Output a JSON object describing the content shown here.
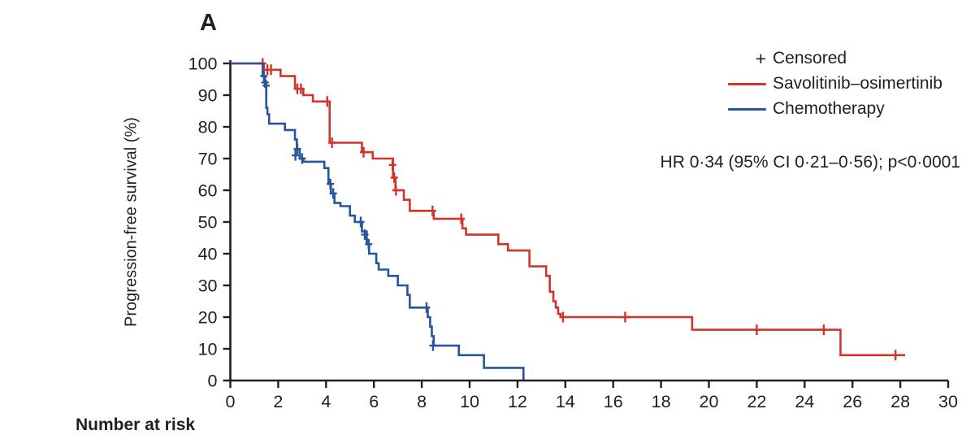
{
  "figure": {
    "panel_label": "A",
    "number_at_risk_label": "Number at risk"
  },
  "legend": {
    "censored_symbol": "+",
    "censored_label": "Censored"
  },
  "colors": {
    "axis": "#231f20",
    "text": "#231f20",
    "savolitinib": "#d0342c",
    "chemotherapy": "#28549c"
  },
  "chart_data": {
    "type": "line",
    "subtype": "kaplan-meier-step",
    "title": "",
    "xlabel": "",
    "ylabel": "Progression-free survival (%)",
    "annotation": "HR 0·34 (95% CI 0·21–0·56); p<0·0001",
    "xlim": [
      0,
      30
    ],
    "ylim": [
      0,
      100
    ],
    "x_ticks": [
      0,
      2,
      4,
      6,
      8,
      10,
      12,
      14,
      16,
      18,
      20,
      22,
      24,
      26,
      28,
      30
    ],
    "y_ticks": [
      0,
      10,
      20,
      30,
      40,
      50,
      60,
      70,
      80,
      90,
      100
    ],
    "grid": false,
    "legend_position": "top-right",
    "series": [
      {
        "name": "Savolitinib–osimertinib",
        "color": "#d0342c",
        "steps": [
          [
            0,
            100
          ],
          [
            1.4,
            98
          ],
          [
            2.1,
            96
          ],
          [
            2.7,
            92
          ],
          [
            3.05,
            90
          ],
          [
            3.45,
            88
          ],
          [
            4.15,
            75
          ],
          [
            5.5,
            72
          ],
          [
            5.95,
            70
          ],
          [
            6.8,
            64
          ],
          [
            6.9,
            60
          ],
          [
            7.25,
            57
          ],
          [
            7.5,
            53.5
          ],
          [
            8.5,
            51
          ],
          [
            9.7,
            48
          ],
          [
            9.85,
            46
          ],
          [
            11.2,
            43
          ],
          [
            11.6,
            41
          ],
          [
            12.5,
            36
          ],
          [
            13.2,
            33
          ],
          [
            13.35,
            28
          ],
          [
            13.5,
            25
          ],
          [
            13.6,
            23
          ],
          [
            13.7,
            21
          ],
          [
            13.8,
            20
          ],
          [
            19.3,
            16
          ],
          [
            25.5,
            8
          ],
          [
            28.2,
            8
          ]
        ],
        "censors": [
          [
            1.35,
            100
          ],
          [
            1.55,
            98
          ],
          [
            1.7,
            98
          ],
          [
            2.8,
            92
          ],
          [
            2.95,
            92
          ],
          [
            4.05,
            88
          ],
          [
            4.25,
            75
          ],
          [
            5.57,
            72
          ],
          [
            6.78,
            68
          ],
          [
            6.85,
            64
          ],
          [
            6.92,
            60
          ],
          [
            8.45,
            53.5
          ],
          [
            9.65,
            51
          ],
          [
            13.9,
            20
          ],
          [
            16.5,
            20
          ],
          [
            22.0,
            16
          ],
          [
            24.8,
            16
          ],
          [
            27.8,
            8
          ]
        ]
      },
      {
        "name": "Chemotherapy",
        "color": "#28549c",
        "steps": [
          [
            0,
            100
          ],
          [
            1.35,
            96
          ],
          [
            1.45,
            93.5
          ],
          [
            1.5,
            86
          ],
          [
            1.55,
            84
          ],
          [
            1.62,
            81
          ],
          [
            2.28,
            79
          ],
          [
            2.7,
            76
          ],
          [
            2.78,
            73
          ],
          [
            2.9,
            70
          ],
          [
            3.05,
            69
          ],
          [
            3.93,
            67
          ],
          [
            4.1,
            62
          ],
          [
            4.2,
            59
          ],
          [
            4.35,
            56
          ],
          [
            4.6,
            55
          ],
          [
            5.0,
            52
          ],
          [
            5.2,
            50
          ],
          [
            5.5,
            47
          ],
          [
            5.7,
            43
          ],
          [
            5.8,
            40
          ],
          [
            6.1,
            37
          ],
          [
            6.2,
            35
          ],
          [
            6.6,
            33
          ],
          [
            7.0,
            30
          ],
          [
            7.4,
            27
          ],
          [
            7.5,
            23
          ],
          [
            8.25,
            20
          ],
          [
            8.35,
            17
          ],
          [
            8.42,
            14
          ],
          [
            8.5,
            11
          ],
          [
            9.55,
            8
          ],
          [
            10.6,
            4
          ],
          [
            12.25,
            0.5
          ],
          [
            12.3,
            0.5
          ]
        ],
        "censors": [
          [
            1.4,
            96
          ],
          [
            1.45,
            94
          ],
          [
            1.5,
            93
          ],
          [
            2.8,
            73
          ],
          [
            3.0,
            70
          ],
          [
            4.18,
            62
          ],
          [
            4.3,
            59
          ],
          [
            5.45,
            50
          ],
          [
            5.62,
            46
          ],
          [
            5.78,
            43
          ],
          [
            8.2,
            23
          ],
          [
            8.47,
            11
          ],
          [
            2.72,
            71
          ]
        ]
      }
    ]
  }
}
